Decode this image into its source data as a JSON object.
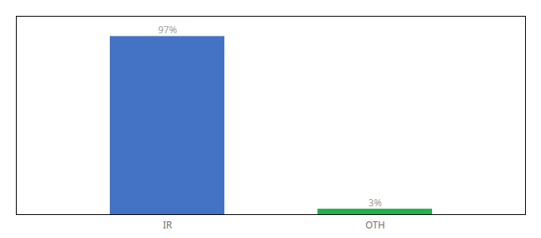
{
  "chart_data": {
    "type": "bar",
    "categories": [
      "IR",
      "OTH"
    ],
    "values": [
      97,
      3
    ],
    "value_labels": [
      "97%",
      "3%"
    ],
    "colors": [
      "#4472c4",
      "#22b14c"
    ],
    "ylim": [
      0,
      108
    ],
    "data_labels": true,
    "tick_labels": "x"
  }
}
